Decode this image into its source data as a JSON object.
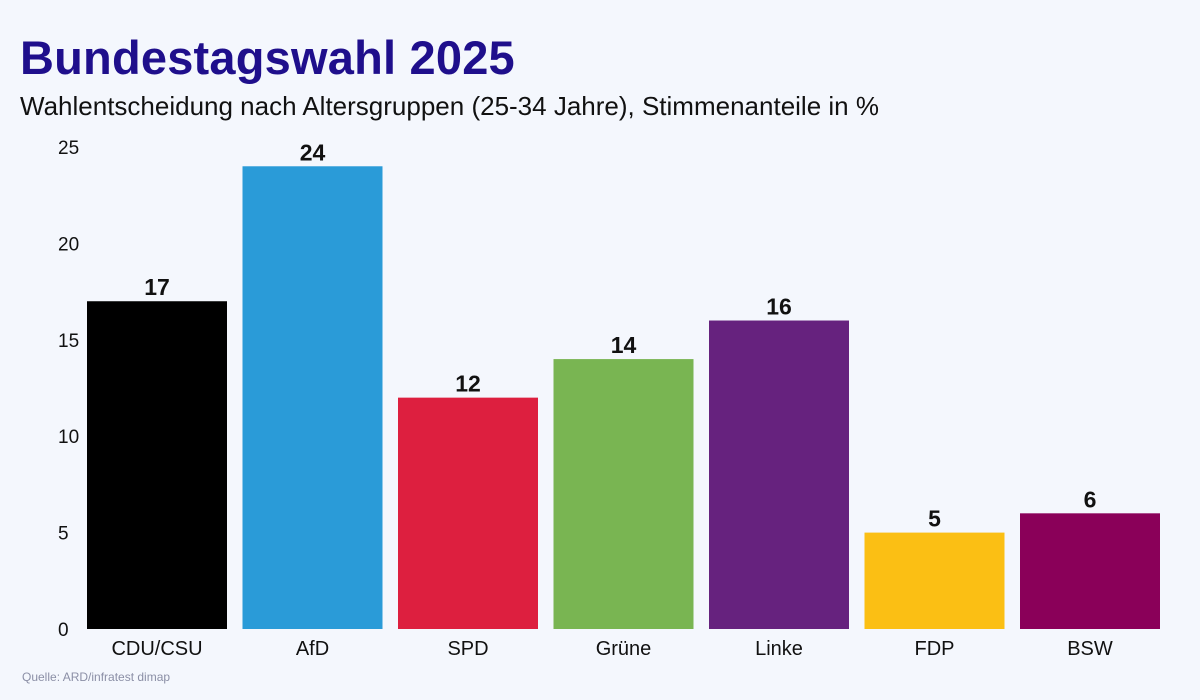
{
  "header": {
    "title": "Bundestagswahl 2025",
    "subtitle": "Wahlentscheidung nach Altersgruppen (25-34 Jahre), Stimmenanteile in %"
  },
  "footer": {
    "source": "Quelle: ARD/infratest dimap"
  },
  "chart_data": {
    "type": "bar",
    "title": "Bundestagswahl 2025",
    "subtitle": "Wahlentscheidung nach Altersgruppen (25-34 Jahre), Stimmenanteile in %",
    "xlabel": "",
    "ylabel": "",
    "ylim": [
      0,
      25
    ],
    "yticks": [
      0,
      5,
      10,
      15,
      20,
      25
    ],
    "grid": false,
    "categories": [
      "CDU/CSU",
      "AfD",
      "SPD",
      "Grüne",
      "Linke",
      "FDP",
      "BSW"
    ],
    "values": [
      17,
      24,
      12,
      14,
      16,
      5,
      6
    ],
    "colors": [
      "#000000",
      "#2a9bd8",
      "#dd1f3f",
      "#79b552",
      "#66227e",
      "#fbbf14",
      "#8a0059"
    ]
  }
}
